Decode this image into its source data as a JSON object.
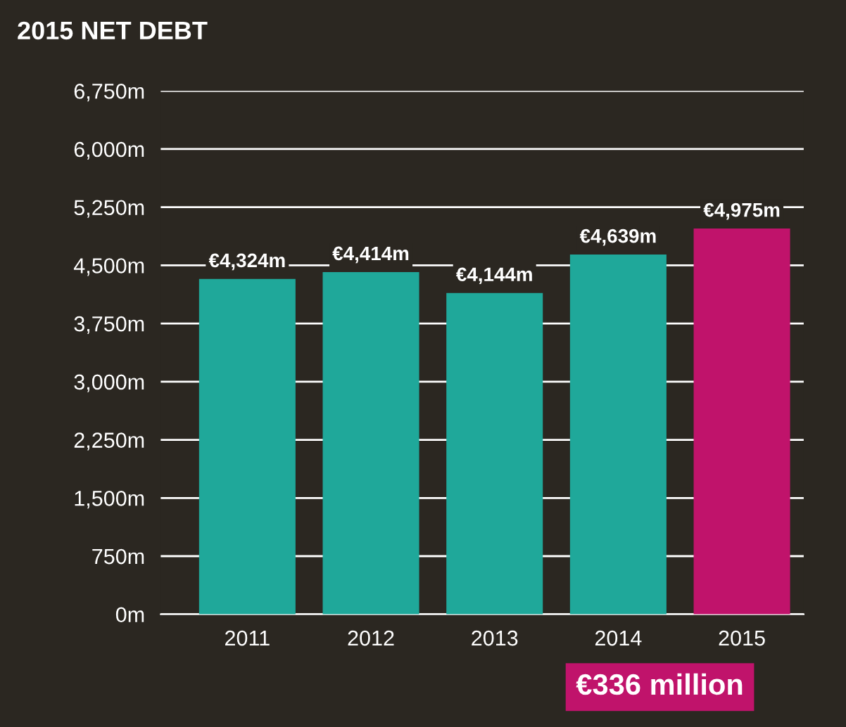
{
  "chart_data": {
    "type": "bar",
    "title": "2015 NET DEBT",
    "categories": [
      "2011",
      "2012",
      "2013",
      "2014",
      "2015"
    ],
    "values": [
      4324,
      4414,
      4144,
      4639,
      4975
    ],
    "colors": [
      "#1fa89a",
      "#1fa89a",
      "#1fa89a",
      "#1fa89a",
      "#c0136b"
    ],
    "value_labels": [
      "€4,324m",
      "€4,414m",
      "€4,144m",
      "€4,639m",
      "€4,975m"
    ],
    "ylim": [
      0,
      6750
    ],
    "yticks": [
      {
        "value": 0,
        "label": "0m"
      },
      {
        "value": 750,
        "label": "750m"
      },
      {
        "value": 1500,
        "label": "1,500m"
      },
      {
        "value": 2250,
        "label": "2,250m"
      },
      {
        "value": 3000,
        "label": "3,000m"
      },
      {
        "value": 3750,
        "label": "3,750m"
      },
      {
        "value": 4500,
        "label": "4,500m"
      },
      {
        "value": 5250,
        "label": "5,250m"
      },
      {
        "value": 6000,
        "label": "6,000m"
      },
      {
        "value": 6750,
        "label": "6,750m"
      }
    ],
    "grid": "y",
    "annotations": [
      "€336 million"
    ]
  }
}
